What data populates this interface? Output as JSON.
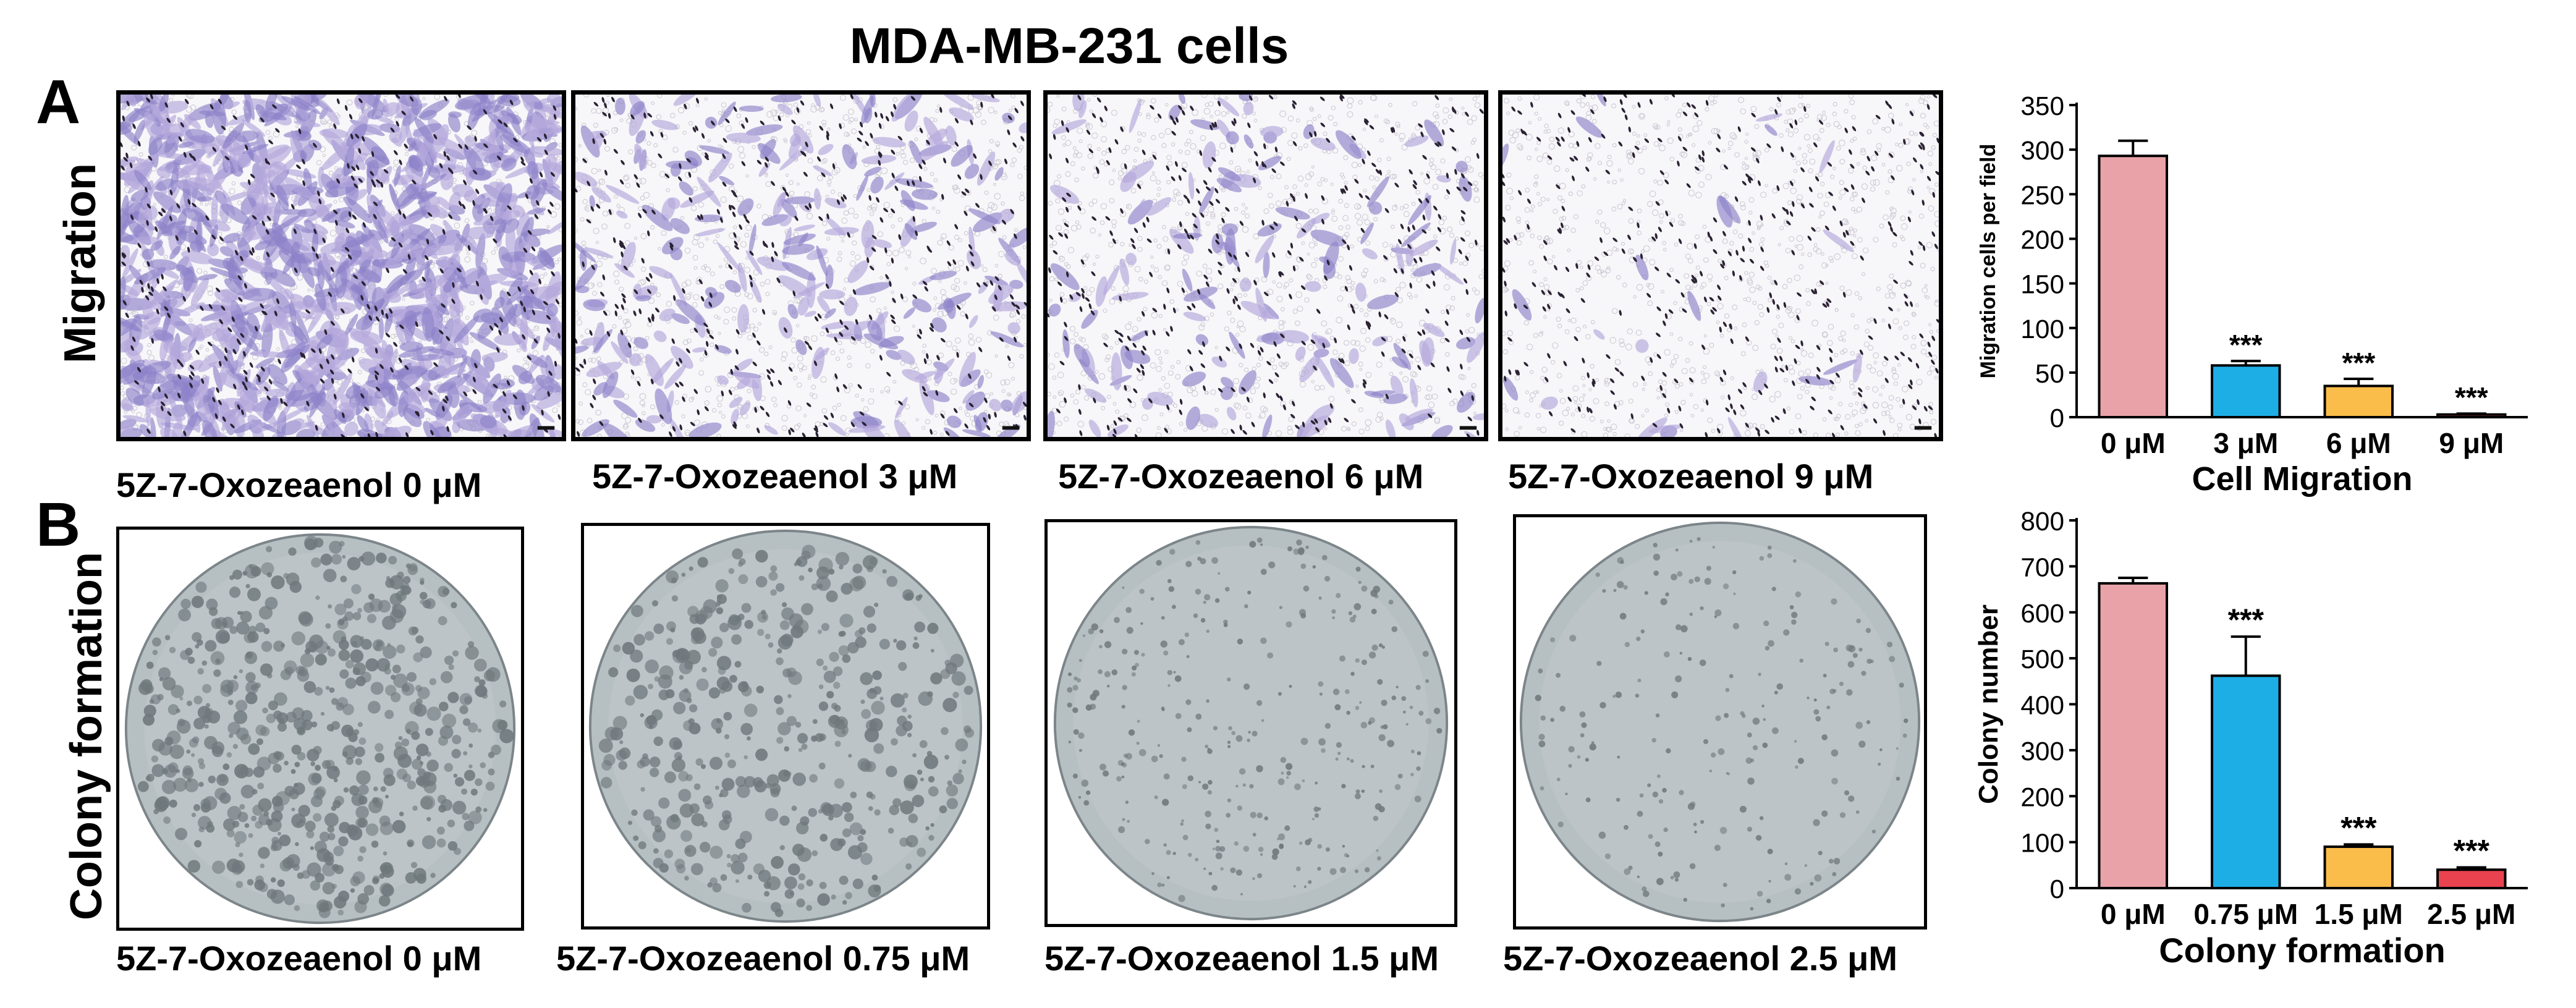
{
  "figure": {
    "title": "MDA-MB-231 cells",
    "panels": [
      {
        "letter": "A",
        "row_label": "Migration",
        "images": [
          {
            "caption": "5Z-7-Oxozeaenol  0 μM",
            "density": 1.0
          },
          {
            "caption": "5Z-7-Oxozeaenol  3 μM",
            "density": 0.22
          },
          {
            "caption": "5Z-7-Oxozeaenol  6 μM",
            "density": 0.13
          },
          {
            "caption": "5Z-7-Oxozeaenol  9 μM",
            "density": 0.02
          }
        ]
      },
      {
        "letter": "B",
        "row_label": "Colony formation",
        "images": [
          {
            "caption": "5Z-7-Oxozeaenol  0 μM",
            "density": 1.0
          },
          {
            "caption": "5Z-7-Oxozeaenol   0.75 μM",
            "density": 0.7
          },
          {
            "caption": "5Z-7-Oxozeaenol 1.5 μM",
            "density": 0.45
          },
          {
            "caption": "5Z-7-Oxozeaenol  2.5 μM",
            "density": 0.25
          }
        ]
      }
    ]
  },
  "colors": {
    "bar_colors": [
      "#e9a3a8",
      "#1eaee6",
      "#fbbd4a",
      "#e8434e"
    ],
    "stain_purple": "#5b4fa8",
    "dish_gray": "#a9b0b3"
  },
  "chart_data": [
    {
      "type": "bar",
      "title": "",
      "xlabel": "Cell Migration",
      "ylabel": "Migration cells  per field",
      "categories": [
        "0 μM",
        "3 μM",
        "6 μM",
        "9 μM"
      ],
      "values": [
        293,
        58,
        35,
        3
      ],
      "errors": [
        17,
        5,
        8,
        1
      ],
      "significance": [
        "",
        "***",
        "***",
        "***"
      ],
      "ylim": [
        0,
        350
      ],
      "yticks": [
        0,
        50,
        100,
        150,
        200,
        250,
        300,
        350
      ],
      "grid": false
    },
    {
      "type": "bar",
      "title": "",
      "xlabel": "Colony formation",
      "ylabel": "Colony number",
      "categories": [
        "0 μM",
        "0.75 μM",
        "1.5 μM",
        "2.5 μM"
      ],
      "values": [
        663,
        462,
        90,
        40
      ],
      "errors": [
        12,
        85,
        5,
        5
      ],
      "significance": [
        "",
        "***",
        "***",
        "***"
      ],
      "ylim": [
        0,
        800
      ],
      "yticks": [
        0,
        100,
        200,
        300,
        400,
        500,
        600,
        700,
        800
      ],
      "grid": false
    }
  ]
}
